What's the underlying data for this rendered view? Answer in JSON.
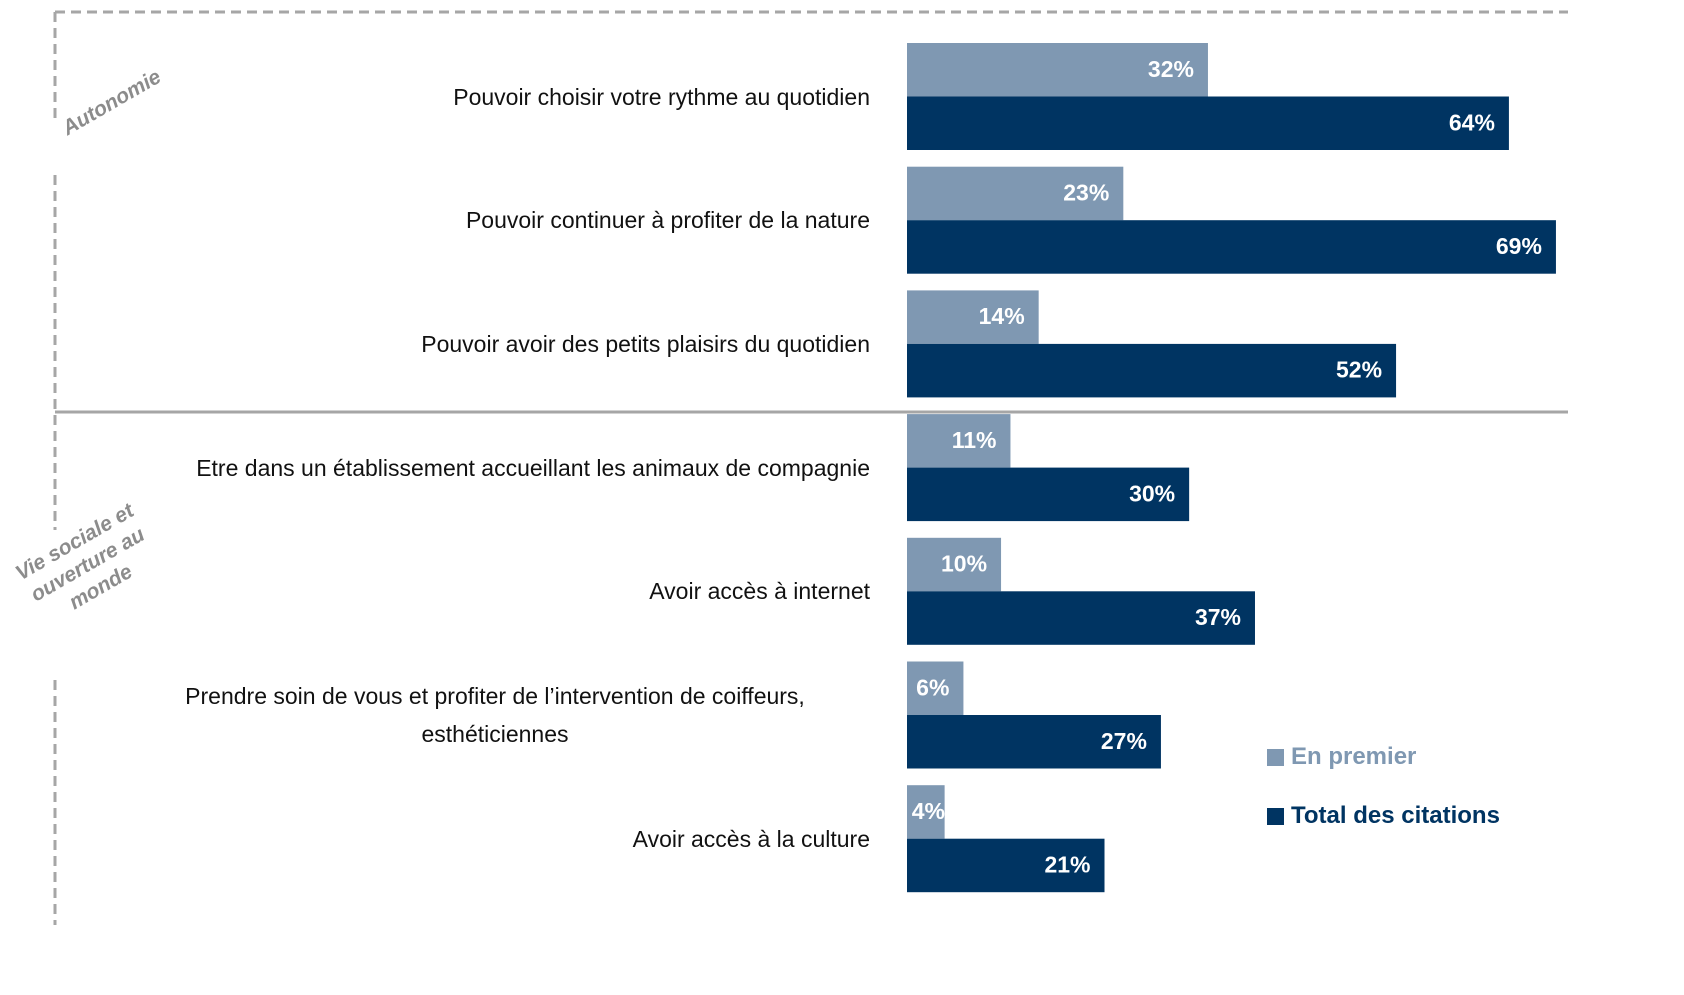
{
  "chart_data": {
    "type": "bar",
    "orientation": "horizontal",
    "categories": [
      "Pouvoir choisir votre rythme au quotidien",
      "Pouvoir continuer à profiter de la nature",
      "Pouvoir avoir des petits plaisirs du quotidien",
      "Etre dans un établissement accueillant les animaux de compagnie",
      "Avoir accès à internet",
      "Prendre soin de vous et profiter de l’intervention de coiffeurs, esthéticiennes",
      "Avoir accès à la culture"
    ],
    "groups": [
      "Autonomie",
      "Vie sociale et ouverture au monde"
    ],
    "series": [
      {
        "name": "En premier",
        "color": "#7f98b2",
        "values": [
          32,
          23,
          14,
          11,
          10,
          6,
          4
        ],
        "value_labels": [
          "32%",
          "23%",
          "14%",
          "11%",
          "10%",
          "6%",
          "4%"
        ]
      },
      {
        "name": "Total des citations",
        "color": "#003462",
        "values": [
          64,
          69,
          52,
          30,
          37,
          27,
          21
        ],
        "value_labels": [
          "64%",
          "69%",
          "52%",
          "30%",
          "37%",
          "27%",
          "21%"
        ]
      }
    ]
  }
}
